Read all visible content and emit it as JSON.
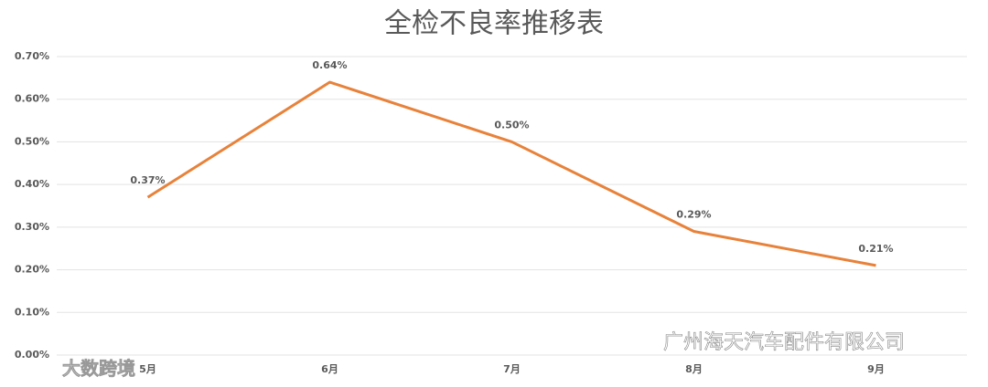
{
  "chart_data": {
    "type": "line",
    "title": "全检不良率推移表",
    "categories": [
      "5月",
      "6月",
      "7月",
      "8月",
      "9月"
    ],
    "series": [
      {
        "name": "不良率",
        "color": "#e8823a",
        "values": [
          0.37,
          0.64,
          0.5,
          0.29,
          0.21
        ],
        "value_labels": [
          "0.37%",
          "0.64%",
          "0.50%",
          "0.29%",
          "0.21%"
        ]
      }
    ],
    "ylim": [
      0,
      0.7
    ],
    "yticks": [
      {
        "value": 0,
        "label": "0.00%"
      },
      {
        "value": 0.1,
        "label": "0.10%"
      },
      {
        "value": 0.2,
        "label": "0.20%"
      },
      {
        "value": 0.3,
        "label": "0.30%"
      },
      {
        "value": 0.4,
        "label": "0.40%"
      },
      {
        "value": 0.5,
        "label": "0.50%"
      },
      {
        "value": 0.6,
        "label": "0.60%"
      },
      {
        "value": 0.7,
        "label": "0.70%"
      }
    ],
    "grid": true
  },
  "watermarks": [
    "大数跨境",
    "广州海天汽车配件有限公司"
  ]
}
